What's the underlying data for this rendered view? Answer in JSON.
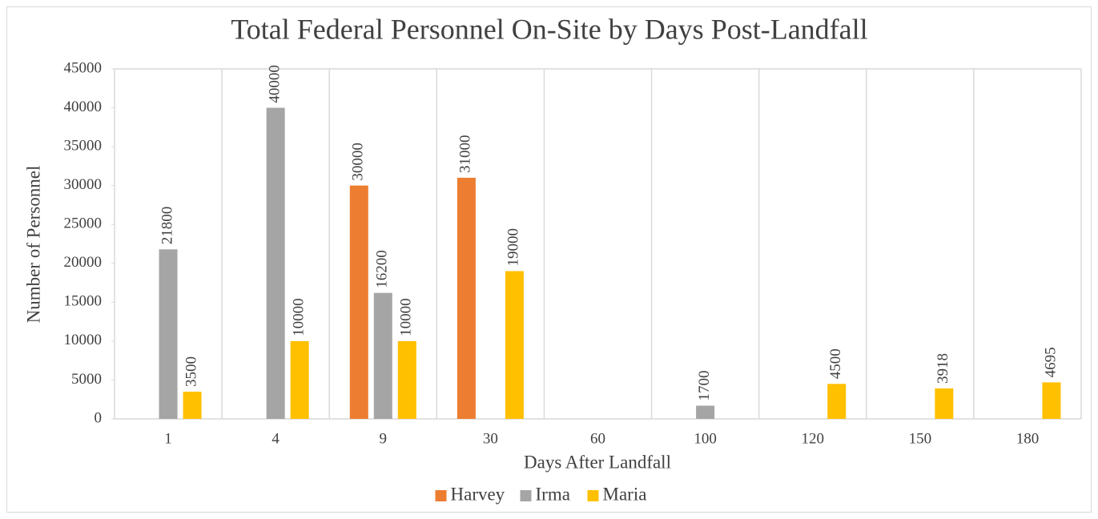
{
  "chart_data": {
    "type": "bar",
    "title": "Total Federal Personnel On-Site by Days Post-Landfall",
    "x_label": "Days After Landfall",
    "y_label": "Number of Personnel",
    "categories": [
      "1",
      "4",
      "9",
      "30",
      "60",
      "100",
      "120",
      "150",
      "180"
    ],
    "series": [
      {
        "name": "Harvey",
        "color": "#ED7D31",
        "values": [
          null,
          null,
          30000,
          31000,
          null,
          null,
          null,
          null,
          null
        ]
      },
      {
        "name": "Irma",
        "color": "#A5A5A5",
        "values": [
          21800,
          40000,
          16200,
          null,
          null,
          1700,
          null,
          null,
          null
        ]
      },
      {
        "name": "Maria",
        "color": "#FFC000",
        "values": [
          3500,
          10000,
          10000,
          19000,
          null,
          null,
          4500,
          3918,
          4695
        ]
      }
    ],
    "ylim": [
      0,
      45000
    ],
    "yticks": [
      0,
      5000,
      10000,
      15000,
      20000,
      25000,
      30000,
      35000,
      40000,
      45000
    ],
    "legend": "bottom"
  }
}
